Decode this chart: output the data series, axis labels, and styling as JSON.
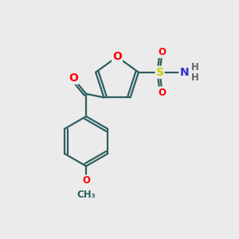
{
  "background_color": "#ebebeb",
  "bond_color": "#2d5f5f",
  "bond_width": 1.6,
  "atom_colors": {
    "O": "#ff0000",
    "S": "#cccc00",
    "N": "#3030cc",
    "H": "#666666",
    "C": "#2d5f5f"
  },
  "figsize": [
    3.0,
    3.0
  ],
  "dpi": 100
}
